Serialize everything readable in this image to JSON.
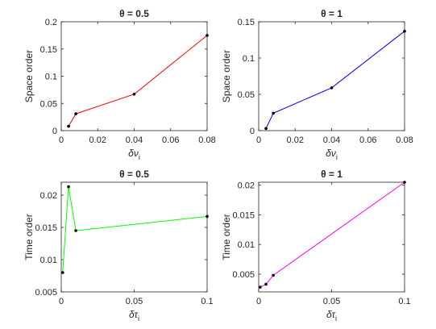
{
  "chart_data": [
    {
      "type": "line",
      "title": "θ = 0.5",
      "xlabel": "δν",
      "xlabel_sub": "i",
      "ylabel": "Space order",
      "xlim": [
        0,
        0.08
      ],
      "ylim": [
        0,
        0.2
      ],
      "xticks": [
        0,
        0.02,
        0.04,
        0.06,
        0.08
      ],
      "xtick_labels": [
        "0",
        "0.02",
        "0.04",
        "0.06",
        "0.08"
      ],
      "yticks": [
        0,
        0.05,
        0.1,
        0.15,
        0.2
      ],
      "ytick_labels": [
        "0",
        "0.05",
        "0.1",
        "0.15",
        "0.2"
      ],
      "series": [
        {
          "color": "#ff0000",
          "x": [
            0.004,
            0.008,
            0.04,
            0.08
          ],
          "y": [
            0.008,
            0.031,
            0.067,
            0.175
          ]
        }
      ]
    },
    {
      "type": "line",
      "title": "θ = 1",
      "xlabel": "δν",
      "xlabel_sub": "i",
      "ylabel": "Space order",
      "xlim": [
        0,
        0.08
      ],
      "ylim": [
        0,
        0.15
      ],
      "xticks": [
        0,
        0.02,
        0.04,
        0.06,
        0.08
      ],
      "xtick_labels": [
        "0",
        "0.02",
        "0.04",
        "0.06",
        "0.08"
      ],
      "yticks": [
        0,
        0.05,
        0.1,
        0.15
      ],
      "ytick_labels": [
        "0",
        "0.05",
        "0.1",
        "0.15"
      ],
      "series": [
        {
          "color": "#0000ff",
          "x": [
            0.004,
            0.008,
            0.04,
            0.08
          ],
          "y": [
            0.003,
            0.024,
            0.059,
            0.137
          ]
        }
      ]
    },
    {
      "type": "line",
      "title": "θ = 0.5",
      "xlabel": "δτ",
      "xlabel_sub": "i",
      "ylabel": "Time order",
      "xlim": [
        0,
        0.1
      ],
      "ylim": [
        0.005,
        0.022
      ],
      "xticks": [
        0,
        0.05,
        0.1
      ],
      "xtick_labels": [
        "0",
        "0.05",
        "0.1"
      ],
      "yticks": [
        0.005,
        0.01,
        0.015,
        0.02
      ],
      "ytick_labels": [
        "0.005",
        "0.01",
        "0.015",
        "0.02"
      ],
      "series": [
        {
          "color": "#00ff00",
          "x": [
            0.001,
            0.005,
            0.01,
            0.1
          ],
          "y": [
            0.008,
            0.0213,
            0.0145,
            0.0167
          ]
        }
      ]
    },
    {
      "type": "line",
      "title": "θ = 1",
      "xlabel": "δτ",
      "xlabel_sub": "i",
      "ylabel": "Time order",
      "xlim": [
        0,
        0.1
      ],
      "ylim": [
        0.002,
        0.0205
      ],
      "xticks": [
        0,
        0.05,
        0.1
      ],
      "xtick_labels": [
        "0",
        "0.05",
        "0.1"
      ],
      "yticks": [
        0.005,
        0.01,
        0.015,
        0.02
      ],
      "ytick_labels": [
        "0.005",
        "0.01",
        "0.015",
        "0.02"
      ],
      "series": [
        {
          "color": "#ff00ff",
          "x": [
            0.001,
            0.005,
            0.01,
            0.1
          ],
          "y": [
            0.0028,
            0.0033,
            0.0048,
            0.0205
          ]
        }
      ]
    }
  ]
}
